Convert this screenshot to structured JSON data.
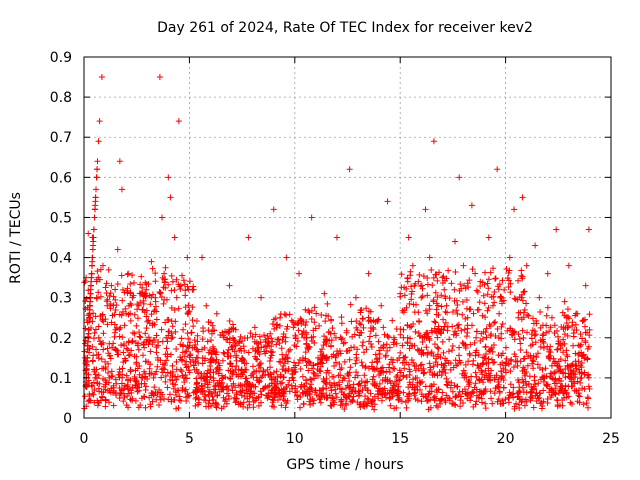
{
  "chart_data": {
    "type": "scatter",
    "title": "Day 261 of 2024, Rate Of TEC Index for receiver kev2",
    "xlabel": "GPS time / hours",
    "ylabel": "ROTI / TECUs",
    "xlim": [
      0,
      25
    ],
    "ylim": [
      0,
      0.9
    ],
    "x_ticks": [
      "0",
      "5",
      "10",
      "15",
      "20",
      "25"
    ],
    "y_ticks": [
      "0",
      "0.1",
      "0.2",
      "0.3",
      "0.4",
      "0.5",
      "0.6",
      "0.7",
      "0.8",
      "0.9"
    ],
    "grid": true,
    "marker": "plus",
    "color": "#ff0000",
    "series": [
      {
        "x": [
          0.05,
          0.1,
          0.2,
          0.3,
          0.4,
          0.5,
          0.6,
          0.7,
          0.8,
          0.9,
          1.0,
          1.1,
          1.2,
          1.3,
          1.4,
          1.5,
          1.6,
          1.7,
          1.8,
          1.9,
          2.0,
          2.1,
          2.2,
          2.3,
          2.4,
          2.5,
          2.6,
          2.7,
          2.8,
          2.9,
          3.0,
          3.1,
          3.2,
          3.3,
          3.4,
          3.5,
          3.6,
          3.7,
          3.8,
          3.9,
          4.0,
          4.1,
          4.2,
          4.3,
          4.4,
          4.5,
          4.6,
          4.7,
          4.8,
          4.9,
          5.0,
          5.2,
          5.4,
          5.6,
          5.8,
          6.0,
          6.3,
          6.6,
          6.9,
          7.2,
          7.5,
          7.8,
          8.1,
          8.4,
          8.7,
          9.0,
          9.3,
          9.6,
          9.9,
          10.2,
          10.5,
          10.8,
          11.1,
          11.4,
          11.7,
          12.0,
          12.3,
          12.6,
          12.9,
          13.2,
          13.5,
          13.8,
          14.1,
          14.4,
          14.7,
          15.0,
          15.2,
          15.4,
          15.6,
          15.8,
          16.0,
          16.2,
          16.4,
          16.6,
          16.8,
          17.0,
          17.2,
          17.4,
          17.6,
          17.8,
          18.0,
          18.2,
          18.4,
          18.6,
          18.8,
          19.0,
          19.2,
          19.4,
          19.6,
          19.8,
          20.0,
          20.2,
          20.4,
          20.6,
          20.8,
          21.0,
          21.2,
          21.4,
          21.6,
          21.8,
          22.0,
          22.2,
          22.4,
          22.6,
          22.8,
          23.0,
          23.2,
          23.4,
          23.6,
          23.8,
          23.95,
          0.15,
          0.35,
          0.6,
          0.25,
          0.45,
          0.12,
          0.3,
          0.2,
          0.47,
          0.38,
          0.14,
          0.28,
          0.1,
          0.33,
          0.08,
          0.22,
          0.42,
          0.64,
          0.57,
          0.18,
          0.26,
          0.36,
          0.12,
          0.3,
          0.21,
          0.09,
          0.17,
          0.31,
          0.27,
          0.11,
          0.24,
          0.19,
          0.39,
          0.1,
          0.29,
          0.15,
          0.85,
          0.5,
          0.36,
          0.2,
          0.6,
          0.55,
          0.13,
          0.45,
          0.3,
          0.74,
          0.33,
          0.22,
          0.1,
          0.4,
          0.18,
          0.32,
          0.15,
          0.4,
          0.28,
          0.12,
          0.26,
          0.1,
          0.33,
          0.22,
          0.08,
          0.45,
          0.19,
          0.3,
          0.12,
          0.52,
          0.25,
          0.4,
          0.1,
          0.36,
          0.27,
          0.5,
          0.15,
          0.31,
          0.21,
          0.45,
          0.1,
          0.62,
          0.3,
          0.18,
          0.36,
          0.12,
          0.28,
          0.54,
          0.2,
          0.31,
          0.15,
          0.45,
          0.38,
          0.1,
          0.3,
          0.52,
          0.4,
          0.69,
          0.22,
          0.35,
          0.28,
          0.12,
          0.44,
          0.6,
          0.38,
          0.25,
          0.53,
          0.2,
          0.34,
          0.15,
          0.45,
          0.28,
          0.62,
          0.3,
          0.12,
          0.4,
          0.52,
          0.25,
          0.55,
          0.38,
          0.18,
          0.43,
          0.3,
          0.1,
          0.36,
          0.25,
          0.47,
          0.12,
          0.29,
          0.38,
          0.18,
          0.26,
          0.1,
          0.33,
          0.47
        ],
        "y": [
          0.15,
          0.35,
          0.46,
          0.25,
          0.45,
          0.12,
          0.3,
          0.2,
          0.37,
          0.38,
          0.14,
          0.28,
          0.1,
          0.33,
          0.08,
          0.22,
          0.42,
          0.64,
          0.57,
          0.18,
          0.26,
          0.36,
          0.12,
          0.3,
          0.21,
          0.09,
          0.17,
          0.31,
          0.27,
          0.11,
          0.24,
          0.19,
          0.39,
          0.1,
          0.29,
          0.15,
          0.85,
          0.5,
          0.36,
          0.2,
          0.6,
          0.55,
          0.13,
          0.45,
          0.3,
          0.74,
          0.33,
          0.22,
          0.1,
          0.4,
          0.18,
          0.32,
          0.15,
          0.4,
          0.28,
          0.12,
          0.26,
          0.1,
          0.33,
          0.22,
          0.08,
          0.45,
          0.19,
          0.3,
          0.12,
          0.52,
          0.25,
          0.4,
          0.1,
          0.36,
          0.27,
          0.5,
          0.15,
          0.31,
          0.21,
          0.45,
          0.1,
          0.62,
          0.3,
          0.18,
          0.36,
          0.12,
          0.28,
          0.54,
          0.2,
          0.31,
          0.15,
          0.45,
          0.38,
          0.1,
          0.3,
          0.52,
          0.4,
          0.69,
          0.22,
          0.35,
          0.28,
          0.12,
          0.44,
          0.6,
          0.38,
          0.25,
          0.53,
          0.2,
          0.34,
          0.15,
          0.45,
          0.28,
          0.62,
          0.3,
          0.12,
          0.4,
          0.52,
          0.25,
          0.55,
          0.38,
          0.18,
          0.43,
          0.3,
          0.1,
          0.36,
          0.25,
          0.47,
          0.12,
          0.29,
          0.38,
          0.18,
          0.26,
          0.1,
          0.33,
          0.47,
          0.15,
          0.35,
          0.6,
          0.25,
          0.45,
          0.12,
          0.3,
          0.2,
          0.47,
          0.38,
          0.14,
          0.28,
          0.1,
          0.33,
          0.08,
          0.22,
          0.42,
          0.64,
          0.57,
          0.18,
          0.26,
          0.36,
          0.12,
          0.3,
          0.21,
          0.09,
          0.17,
          0.31,
          0.27,
          0.11,
          0.24,
          0.19,
          0.39,
          0.1,
          0.29,
          0.15,
          0.85,
          0.5,
          0.36,
          0.2,
          0.6,
          0.55,
          0.13,
          0.45,
          0.3,
          0.74,
          0.33,
          0.22,
          0.1,
          0.4,
          0.18,
          0.32,
          0.15,
          0.4,
          0.28,
          0.12,
          0.26,
          0.1,
          0.33,
          0.22,
          0.08,
          0.45,
          0.19,
          0.3,
          0.12,
          0.52,
          0.25,
          0.4,
          0.1,
          0.36,
          0.27,
          0.5,
          0.15,
          0.31,
          0.21,
          0.45,
          0.1,
          0.62,
          0.3,
          0.18,
          0.36,
          0.12,
          0.28,
          0.54,
          0.2,
          0.31,
          0.15,
          0.45,
          0.38,
          0.1,
          0.3,
          0.52,
          0.4,
          0.69,
          0.22,
          0.35,
          0.28,
          0.12,
          0.44,
          0.6,
          0.38,
          0.25,
          0.53,
          0.2,
          0.34,
          0.15,
          0.45,
          0.28,
          0.62,
          0.3,
          0.12,
          0.4,
          0.52,
          0.25,
          0.55,
          0.38,
          0.18,
          0.43,
          0.3,
          0.1,
          0.36,
          0.25,
          0.47,
          0.12,
          0.29,
          0.38,
          0.18,
          0.26,
          0.1,
          0.33,
          0.47
        ]
      }
    ]
  }
}
